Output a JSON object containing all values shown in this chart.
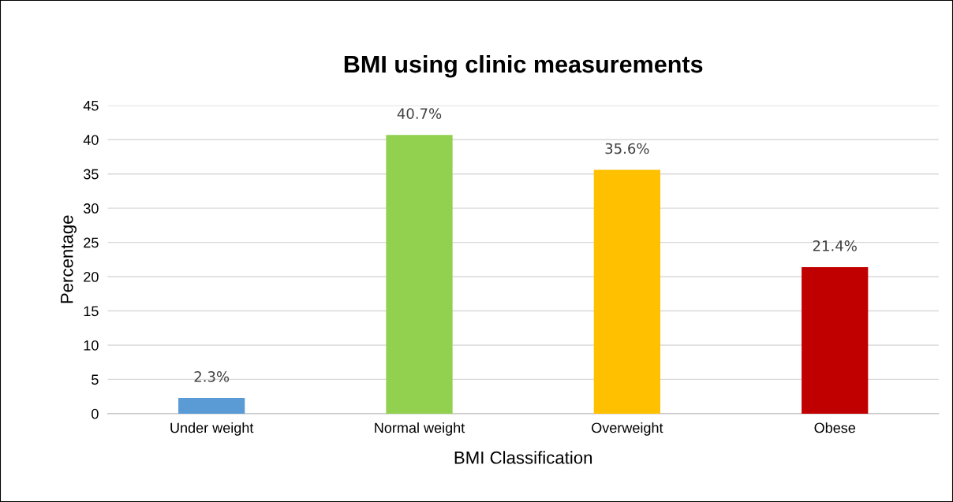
{
  "chart_data": {
    "type": "bar",
    "title": "BMI using clinic measurements",
    "xlabel": "BMI Classification",
    "ylabel": "Percentage",
    "categories": [
      "Under weight",
      "Normal weight",
      "Overweight",
      "Obese"
    ],
    "values": [
      2.3,
      40.7,
      35.6,
      21.4
    ],
    "colors": [
      "#5b9bd5",
      "#92d050",
      "#ffc000",
      "#c00000"
    ],
    "value_labels": [
      "2.3%",
      "40.7%",
      "35.6%",
      "21.4%"
    ],
    "ylim": [
      0,
      45
    ],
    "yticks": [
      0,
      5,
      10,
      15,
      20,
      25,
      30,
      35,
      40,
      45
    ],
    "grid": "y"
  }
}
